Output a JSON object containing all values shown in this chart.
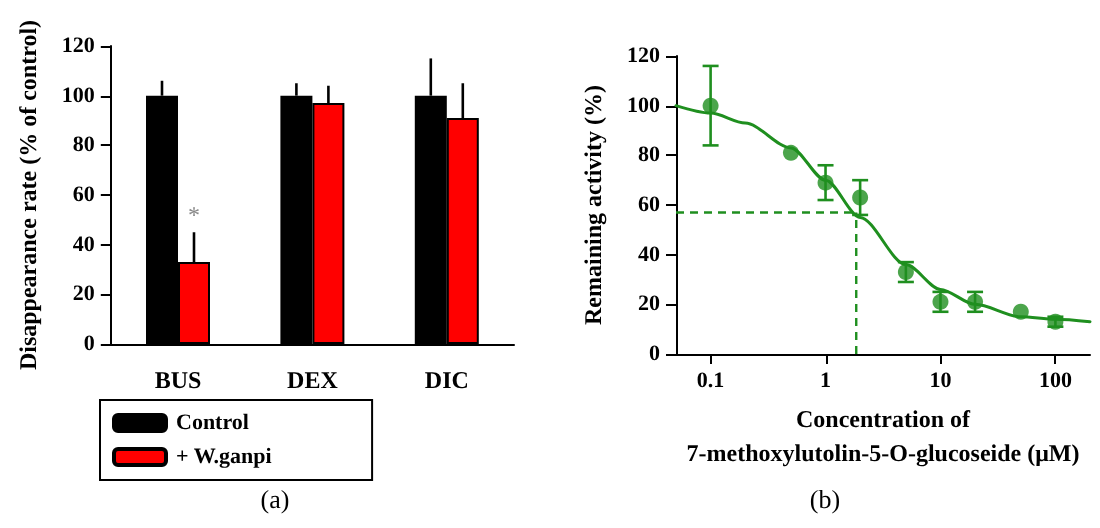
{
  "chart_data": [
    {
      "type": "bar",
      "ylabel": "Disappearance rate (% of control)",
      "categories": [
        "BUS",
        "DEX",
        "DIC"
      ],
      "series": [
        {
          "name": "Control",
          "color": "#000000",
          "values": [
            100,
            100,
            100
          ],
          "errors": [
            [
              100,
              106
            ],
            [
              100,
              105
            ],
            [
              100,
              115
            ]
          ]
        },
        {
          "name": "+ W.ganpi",
          "color": "#ff0000",
          "values": [
            33,
            97,
            91
          ],
          "errors": [
            [
              33,
              45
            ],
            [
              97,
              104
            ],
            [
              91,
              105
            ]
          ]
        }
      ],
      "ylim": [
        0,
        120
      ],
      "yticks": [
        0,
        20,
        40,
        60,
        80,
        100,
        120
      ],
      "legend": "bottom",
      "grid": false,
      "annotations": [
        {
          "text": "*",
          "x": "BUS",
          "y": 47
        },
        "(a)"
      ]
    },
    {
      "type": "scatter",
      "ylabel": "Remaining activity (%)",
      "xlabel": "Concentration of\n7-methoxylutolin-5-O-glucoseide (μM)",
      "log": "x",
      "series": [
        {
          "color": "#1f8f1f",
          "x": [
            0.1,
            0.5,
            1,
            2,
            5,
            10,
            20,
            50,
            100
          ],
          "values": [
            100,
            81,
            69,
            63,
            33,
            21,
            21,
            17,
            13
          ],
          "errors": [
            16,
            null,
            7,
            7,
            4,
            4,
            4,
            null,
            2
          ]
        },
        {
          "type": "line",
          "color": "#1f8f1f",
          "marker": "none",
          "x": [
            0.05,
            0.1,
            0.2,
            0.5,
            1,
            2,
            5,
            10,
            20,
            50,
            100,
            200
          ],
          "values": [
            100,
            97,
            93,
            83,
            70,
            55,
            36,
            26,
            20,
            15,
            14,
            13
          ]
        }
      ],
      "xlim": [
        0.05,
        200
      ],
      "xticks": [
        0.1,
        1,
        10,
        100
      ],
      "ylim": [
        0,
        120
      ],
      "yticks": [
        0,
        20,
        40,
        60,
        80,
        100,
        120
      ],
      "marker": "circle",
      "grid": false,
      "legend": false,
      "ref_lines": [
        {
          "axis": "y",
          "value": 57,
          "color": "#1f8f1f",
          "line_style": "dashed"
        },
        {
          "axis": "x",
          "value": 1.85,
          "color": "#1f8f1f",
          "line_style": "dashed"
        }
      ],
      "annotations": [
        "(b)"
      ]
    }
  ]
}
